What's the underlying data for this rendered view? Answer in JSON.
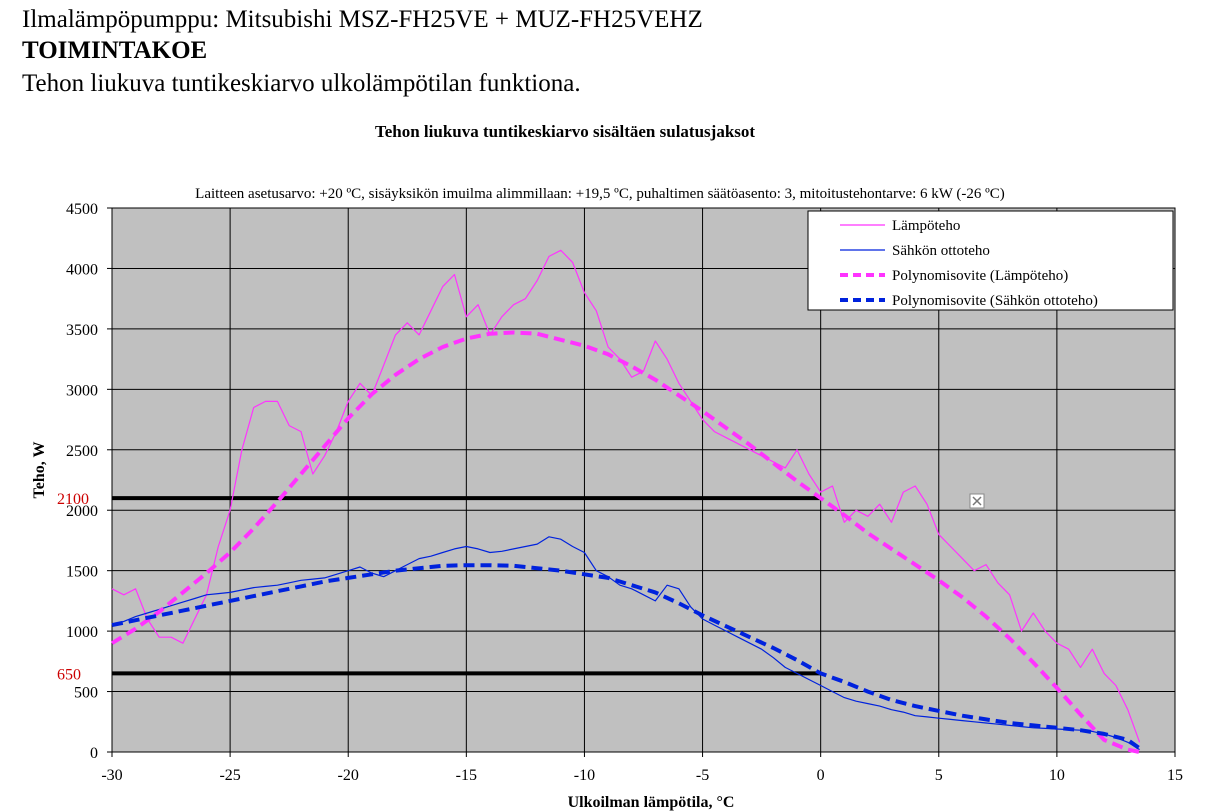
{
  "header": {
    "line1": "Ilmalämpöpumppu: Mitsubishi MSZ-FH25VE + MUZ-FH25VEHZ",
    "line2": "TOIMINTAKOE",
    "line3": "Tehon liukuva tuntikeskiarvo ulkolämpötilan funktiona."
  },
  "chart_data": {
    "type": "line",
    "title": "Tehon liukuva tuntikeskiarvo sisältäen sulatusjaksot",
    "subtitle": "Laitteen asetusarvo: +20 ºC, sisäyksikön imuilma alimmillaan: +19,5 ºC, puhaltimen säätöasento: 3, mitoitustehontarve: 6 kW (-26 ºC)",
    "xlabel": "Ulkoilman lämpötila, °C",
    "ylabel": "Teho, W",
    "xlim": [
      -30,
      15
    ],
    "ylim": [
      0,
      4500
    ],
    "xticks": [
      -30,
      -25,
      -20,
      -15,
      -10,
      -5,
      0,
      5,
      10,
      15
    ],
    "yticks": [
      0,
      500,
      1000,
      1500,
      2000,
      2500,
      3000,
      3500,
      4000,
      4500
    ],
    "xtick_labels": [
      "-30",
      "-25",
      "-20",
      "-15",
      "-10",
      "-5",
      "0",
      "5",
      "10",
      "15"
    ],
    "ytick_labels": [
      "0",
      "500",
      "1000",
      "1500",
      "2000",
      "2500",
      "3000",
      "3500",
      "4000",
      "4500"
    ],
    "grid": true,
    "background": "#c0c0c0",
    "legend_position": "top-right",
    "series": [
      {
        "name": "Lämpöteho",
        "style": "thin",
        "color": "#ff33ff",
        "x": [
          -30,
          -29.5,
          -29,
          -28.5,
          -28,
          -27.5,
          -27,
          -26.5,
          -26,
          -25.5,
          -25,
          -24.5,
          -24,
          -23.5,
          -23,
          -22.5,
          -22,
          -21.5,
          -21,
          -20.5,
          -20,
          -19.5,
          -19,
          -18.5,
          -18,
          -17.5,
          -17,
          -16.5,
          -16,
          -15.5,
          -15,
          -14.5,
          -14,
          -13.5,
          -13,
          -12.5,
          -12,
          -11.5,
          -11,
          -10.5,
          -10,
          -9.5,
          -9,
          -8.5,
          -8,
          -7.5,
          -7,
          -6.5,
          -6,
          -5.5,
          -5,
          -4.5,
          -4,
          -3.5,
          -3,
          -2.5,
          -2,
          -1.5,
          -1,
          -0.5,
          0,
          0.5,
          1,
          1.5,
          2,
          2.5,
          3,
          3.5,
          4,
          4.5,
          5,
          5.5,
          6,
          6.5,
          7,
          7.5,
          8,
          8.5,
          9,
          9.5,
          10,
          10.5,
          11,
          11.5,
          12,
          12.5,
          13,
          13.5
        ],
        "values": [
          1350,
          1300,
          1350,
          1100,
          950,
          950,
          900,
          1100,
          1300,
          1700,
          2000,
          2500,
          2850,
          2900,
          2900,
          2700,
          2650,
          2300,
          2450,
          2650,
          2900,
          3050,
          2950,
          3200,
          3450,
          3550,
          3450,
          3650,
          3850,
          3950,
          3600,
          3700,
          3450,
          3600,
          3700,
          3750,
          3900,
          4100,
          4150,
          4050,
          3800,
          3650,
          3350,
          3250,
          3100,
          3150,
          3400,
          3250,
          3050,
          2900,
          2750,
          2650,
          2600,
          2550,
          2500,
          2450,
          2400,
          2350,
          2500,
          2300,
          2150,
          2200,
          1900,
          2000,
          1950,
          2050,
          1900,
          2150,
          2200,
          2050,
          1800,
          1700,
          1600,
          1500,
          1550,
          1400,
          1300,
          1000,
          1150,
          1000,
          900,
          850,
          700,
          850,
          650,
          550,
          350,
          80
        ]
      },
      {
        "name": "Sähkön ottoteho",
        "style": "thin",
        "color": "#0022dd",
        "x": [
          -30,
          -29.5,
          -29,
          -28.5,
          -28,
          -27.5,
          -27,
          -26.5,
          -26,
          -25.5,
          -25,
          -24.5,
          -24,
          -23.5,
          -23,
          -22.5,
          -22,
          -21.5,
          -21,
          -20.5,
          -20,
          -19.5,
          -19,
          -18.5,
          -18,
          -17.5,
          -17,
          -16.5,
          -16,
          -15.5,
          -15,
          -14.5,
          -14,
          -13.5,
          -13,
          -12.5,
          -12,
          -11.5,
          -11,
          -10.5,
          -10,
          -9.5,
          -9,
          -8.5,
          -8,
          -7.5,
          -7,
          -6.5,
          -6,
          -5.5,
          -5,
          -4.5,
          -4,
          -3.5,
          -3,
          -2.5,
          -2,
          -1.5,
          -1,
          -0.5,
          0,
          0.5,
          1,
          1.5,
          2,
          2.5,
          3,
          3.5,
          4,
          4.5,
          5,
          5.5,
          6,
          6.5,
          7,
          7.5,
          8,
          8.5,
          9,
          9.5,
          10,
          10.5,
          11,
          11.5,
          12,
          12.5,
          13,
          13.5
        ],
        "values": [
          1050,
          1080,
          1120,
          1150,
          1180,
          1210,
          1240,
          1270,
          1300,
          1310,
          1320,
          1340,
          1360,
          1370,
          1380,
          1400,
          1420,
          1430,
          1440,
          1470,
          1500,
          1530,
          1480,
          1450,
          1500,
          1550,
          1600,
          1620,
          1650,
          1680,
          1700,
          1680,
          1650,
          1660,
          1680,
          1700,
          1720,
          1780,
          1760,
          1700,
          1650,
          1500,
          1450,
          1380,
          1350,
          1300,
          1250,
          1380,
          1350,
          1200,
          1100,
          1050,
          1000,
          950,
          900,
          850,
          780,
          700,
          650,
          600,
          550,
          500,
          450,
          420,
          400,
          380,
          350,
          330,
          300,
          290,
          280,
          270,
          260,
          250,
          240,
          230,
          220,
          210,
          200,
          195,
          190,
          185,
          180,
          170,
          150,
          120,
          80,
          20
        ]
      },
      {
        "name": "Polynomisovite (Lämpöteho)",
        "style": "dashed",
        "color": "#ff33ff",
        "x": [
          -30,
          -29,
          -28,
          -27,
          -26,
          -25,
          -24,
          -23,
          -22,
          -21,
          -20,
          -19,
          -18,
          -17,
          -16,
          -15,
          -14,
          -13,
          -12,
          -11,
          -10,
          -9,
          -8,
          -7,
          -6,
          -5,
          -4,
          -3,
          -2,
          -1,
          0,
          1,
          2,
          3,
          4,
          5,
          6,
          7,
          8,
          9,
          10,
          11,
          12,
          13,
          13.5
        ],
        "values": [
          900,
          1020,
          1160,
          1320,
          1480,
          1650,
          1850,
          2070,
          2300,
          2530,
          2760,
          2960,
          3120,
          3250,
          3350,
          3420,
          3460,
          3470,
          3460,
          3410,
          3360,
          3290,
          3190,
          3080,
          2950,
          2820,
          2680,
          2540,
          2390,
          2240,
          2100,
          1960,
          1810,
          1680,
          1550,
          1420,
          1280,
          1120,
          940,
          740,
          530,
          310,
          100,
          20,
          0
        ]
      },
      {
        "name": "Polynomisovite (Sähkön ottoteho)",
        "style": "dashed",
        "color": "#0022dd",
        "x": [
          -30,
          -29,
          -28,
          -27,
          -26,
          -25,
          -24,
          -23,
          -22,
          -21,
          -20,
          -19,
          -18,
          -17,
          -16,
          -15,
          -14,
          -13,
          -12,
          -11,
          -10,
          -9,
          -8,
          -7,
          -6,
          -5,
          -4,
          -3,
          -2,
          -1,
          0,
          1,
          2,
          3,
          4,
          5,
          6,
          7,
          8,
          9,
          10,
          11,
          12,
          13,
          13.5
        ],
        "values": [
          1050,
          1090,
          1130,
          1170,
          1210,
          1250,
          1290,
          1330,
          1370,
          1410,
          1440,
          1470,
          1500,
          1520,
          1540,
          1545,
          1545,
          1540,
          1520,
          1500,
          1470,
          1440,
          1380,
          1320,
          1230,
          1130,
          1040,
          950,
          860,
          760,
          650,
          580,
          500,
          430,
          380,
          340,
          300,
          270,
          240,
          220,
          200,
          180,
          150,
          100,
          30
        ]
      }
    ],
    "reference_lines": [
      {
        "label": "2100",
        "y": 2100,
        "x_range": [
          -30,
          0
        ],
        "color": "#000000"
      },
      {
        "label": "650",
        "y": 650,
        "x_range": [
          -30,
          0
        ],
        "color": "#000000"
      }
    ]
  }
}
